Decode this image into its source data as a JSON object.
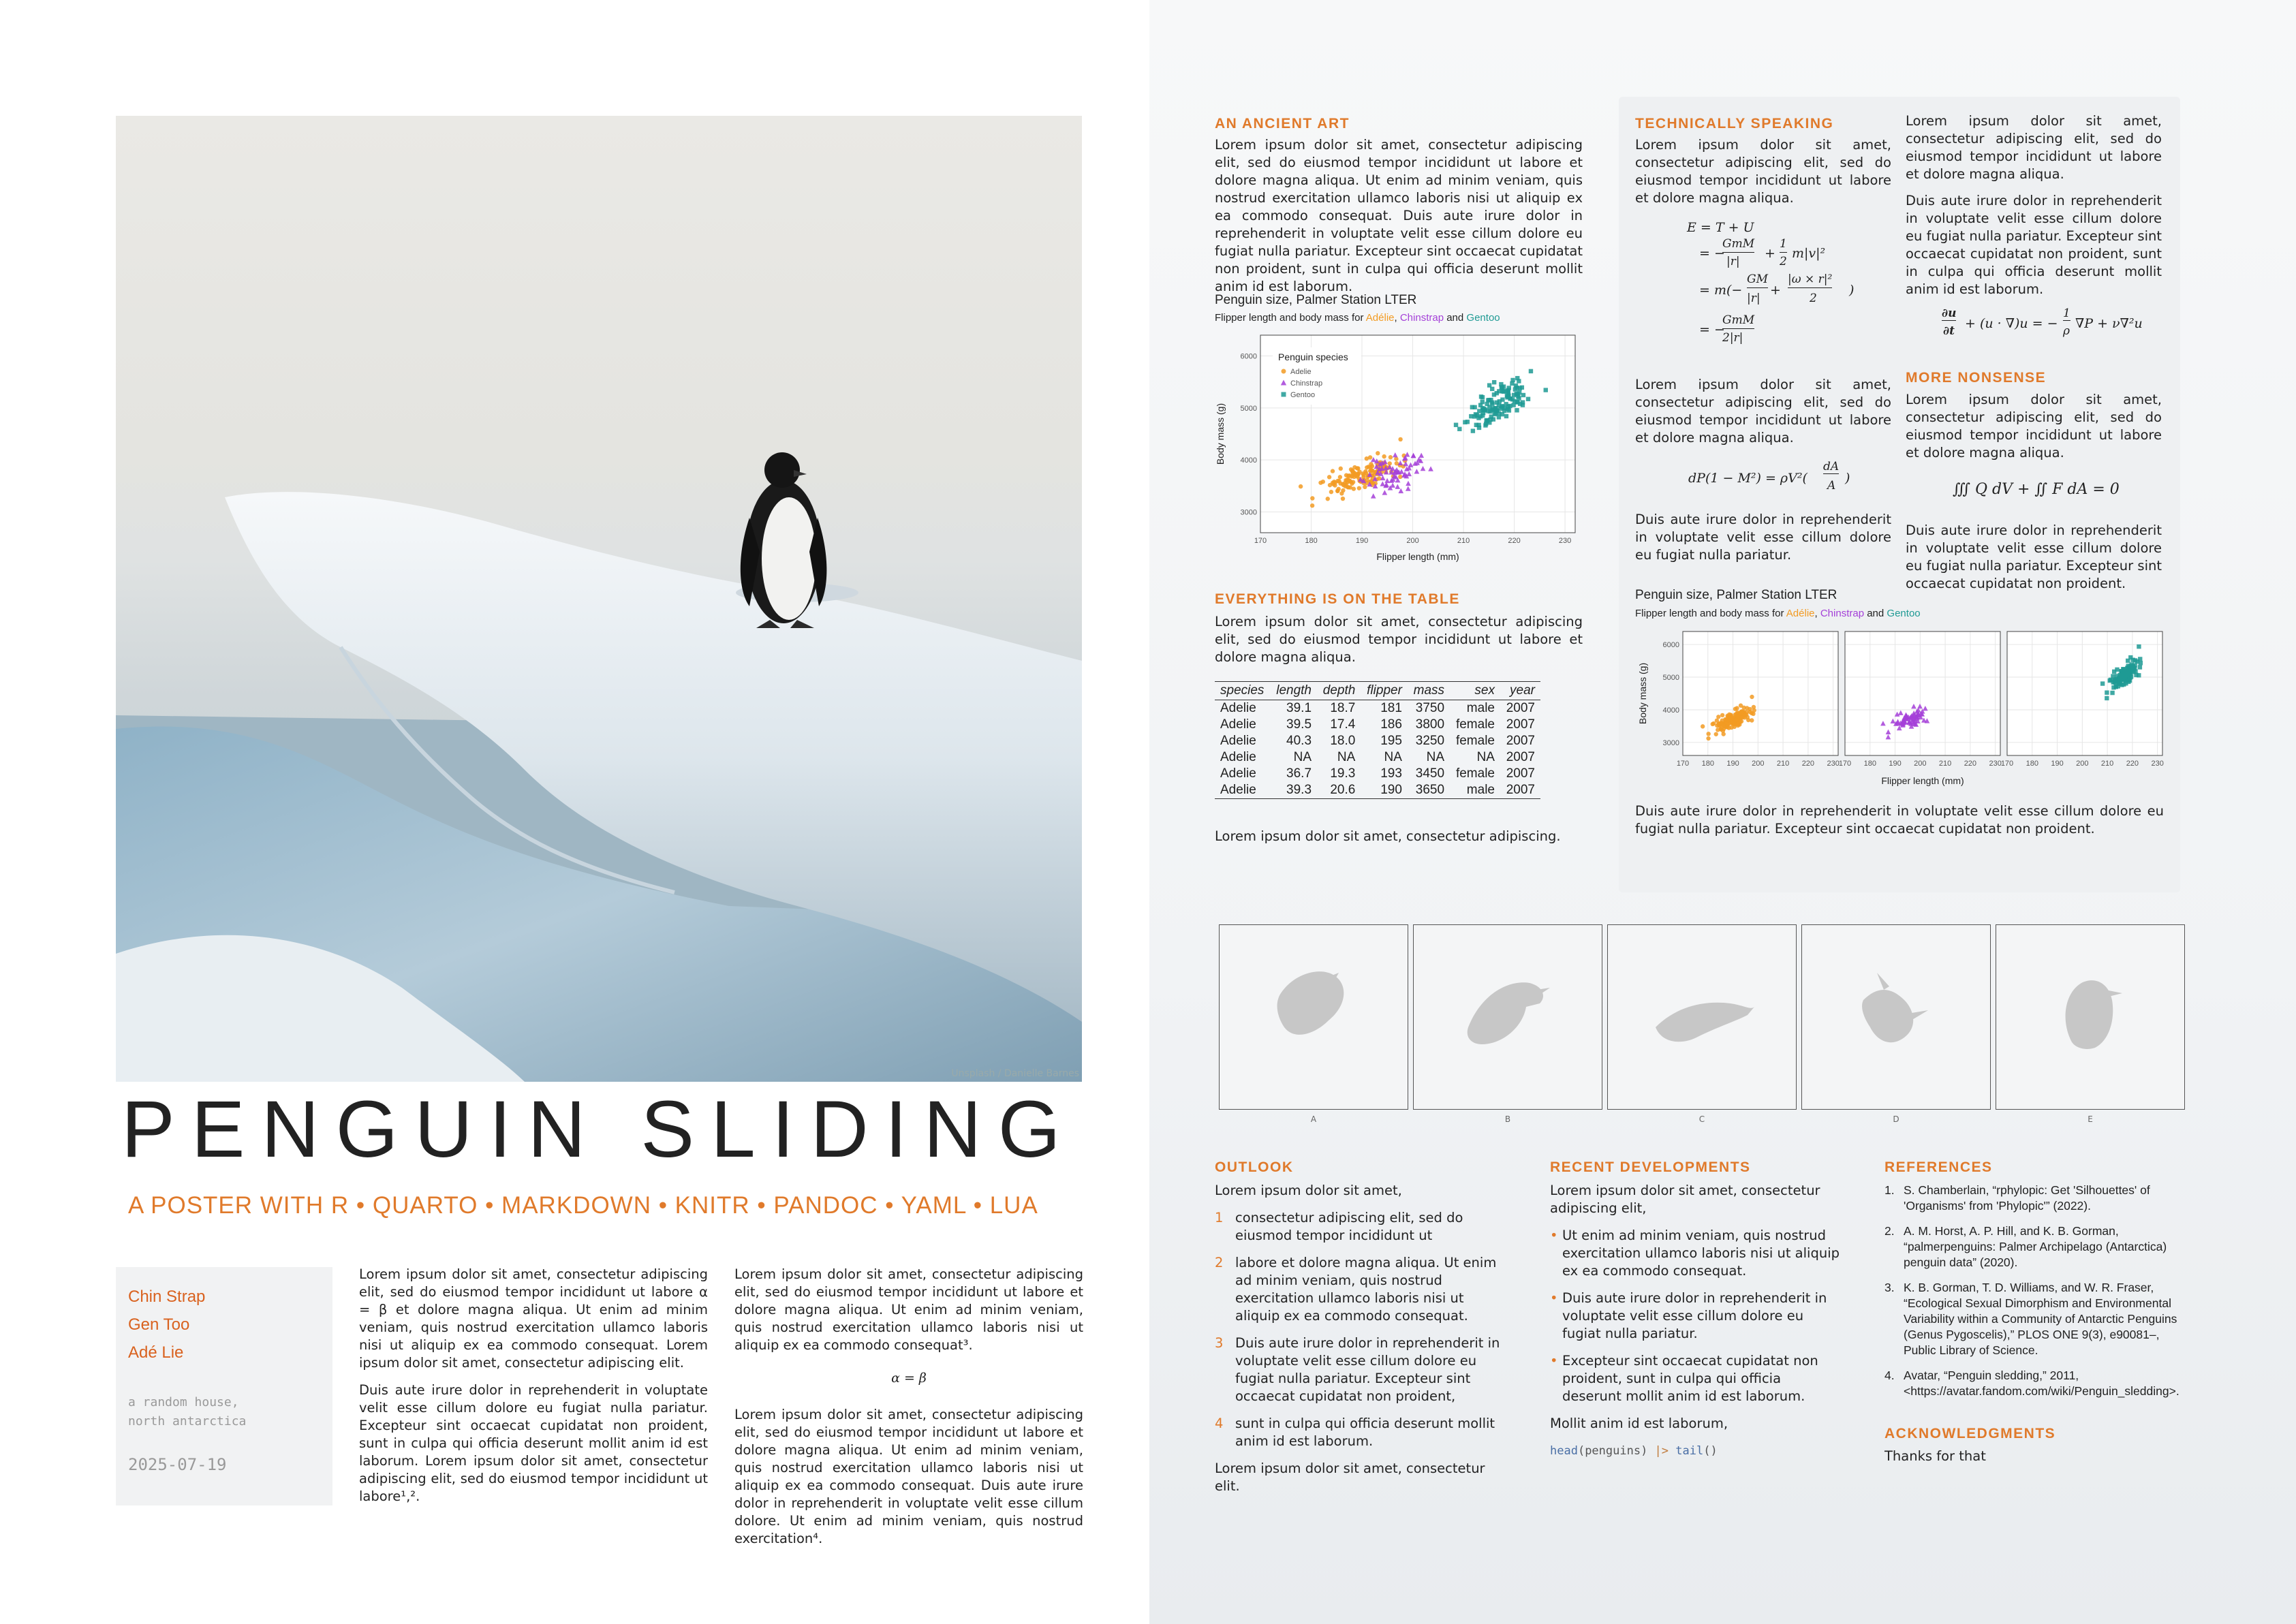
{
  "photo": {
    "credit": "Unsplash / Danielle Barnes"
  },
  "title": "PENGUIN SLIDING",
  "subtitle": "A POSTER WITH R • QUARTO • MARKDOWN • KNITR • PANDOC • YAML • LUA",
  "authors": [
    "Chin Strap",
    "Gen Too",
    "Adé Lie"
  ],
  "affiliation": [
    "a random house,",
    "north antarctica"
  ],
  "date": "2025-07-19",
  "body": {
    "c1p1": "Lorem ipsum dolor sit amet, consectetur adipiscing elit, sed do eiusmod tempor incididunt ut labore α = β et dolore magna aliqua. Ut enim ad minim veniam, quis nostrud exercitation ullamco laboris nisi ut aliquip ex ea commodo consequat. Lorem ipsum dolor sit amet, consectetur adipiscing elit.",
    "c1p2": "Duis aute irure dolor in reprehenderit in voluptate velit esse cillum dolore eu fugiat nulla pariatur. Excepteur sint occaecat cupidatat non proident, sunt in culpa qui officia deserunt mollit anim id est laborum. Lorem ipsum dolor sit amet, consectetur adipiscing elit, sed do eiusmod tempor incididunt ut labore¹,².",
    "c2p1": "Lorem ipsum dolor sit amet, consectetur adipiscing elit, sed do eiusmod tempor incididunt ut labore et dolore magna aliqua. Ut enim ad minim veniam, quis nostrud exercitation ullamco laboris nisi ut aliquip ex ea commodo consequat³.",
    "c2eq": "α = β",
    "c2p2": "Lorem ipsum dolor sit amet, consectetur adipiscing elit, sed do eiusmod tempor incididunt ut labore et dolore magna aliqua. Ut enim ad minim veniam, quis nostrud exercitation ullamco laboris nisi ut aliquip ex ea commodo consequat. Duis aute irure dolor in reprehenderit in voluptate velit esse cillum dolore. Ut enim ad minim veniam, quis nostrud exercitation⁴."
  },
  "ancient": {
    "heading": "AN ANCIENT ART",
    "text": "Lorem ipsum dolor sit amet, consectetur adipiscing elit, sed do eiusmod tempor incididunt ut labore et dolore magna aliqua. Ut enim ad minim veniam, quis nostrud exercitation ullamco laboris nisi ut aliquip ex ea commodo consequat. Duis aute irure dolor in reprehenderit in voluptate velit esse cillum dolore eu fugiat nulla pariatur. Excepteur sint occaecat cupidatat non proident, sunt in culpa qui officia deserunt mollit anim id est laborum.",
    "chart_title": "Penguin size, Palmer Station LTER",
    "chart_sub_pre": "Flipper length and body mass for ",
    "chart_sub_and": " and "
  },
  "species": {
    "adelie": "Adélie",
    "chinstrap": "Chinstrap",
    "gentoo": "Gentoo",
    "comma": ", "
  },
  "table_section": {
    "heading": "EVERYTHING IS ON THE TABLE",
    "text": "Lorem ipsum dolor sit amet, consectetur adipiscing elit, sed do eiusmod tempor incididunt ut labore et dolore magna aliqua.",
    "columns": [
      "species",
      "length",
      "depth",
      "flipper",
      "mass",
      "sex",
      "year"
    ],
    "rows": [
      [
        "Adelie",
        "39.1",
        "18.7",
        "181",
        "3750",
        "male",
        "2007"
      ],
      [
        "Adelie",
        "39.5",
        "17.4",
        "186",
        "3800",
        "female",
        "2007"
      ],
      [
        "Adelie",
        "40.3",
        "18.0",
        "195",
        "3250",
        "female",
        "2007"
      ],
      [
        "Adelie",
        "NA",
        "NA",
        "NA",
        "NA",
        "NA",
        "2007"
      ],
      [
        "Adelie",
        "36.7",
        "19.3",
        "193",
        "3450",
        "female",
        "2007"
      ],
      [
        "Adelie",
        "39.3",
        "20.6",
        "190",
        "3650",
        "male",
        "2007"
      ]
    ],
    "after": "Lorem ipsum dolor sit amet, consectetur adipiscing."
  },
  "tech": {
    "heading": "TECHNICALLY SPEAKING",
    "p1": "Lorem ipsum dolor sit amet, consectetur adipiscing elit, sed do eiusmod tempor incididunt ut labore et dolore magna aliqua.",
    "p2": "Lorem ipsum dolor sit amet, consectetur adipiscing elit, sed do eiusmod tempor incididunt ut labore et dolore magna aliqua.",
    "p3": "Duis aute irure dolor in reprehenderit in voluptate velit esse cillum dolore eu fugiat nulla pariatur.",
    "eq1a": "E = T + U",
    "eq1b": "= −",
    "eq1c": "GmM",
    "eq1d": "|r|",
    "eq1e": "+ ",
    "eq1f": "1",
    "eq1g": "2",
    "eq1h": "m|v|²",
    "eq1i": "= m(−",
    "eq1j": "GM",
    "eq1k": "|r|",
    "eq1l": " + ",
    "eq1m": "|ω × r|²",
    "eq1n": "2",
    "eq1o": ")",
    "eq1p": "= −",
    "eq1q": "GmM",
    "eq1r": "2|r|",
    "eq2a": "dP(1 − M²) = ρV²(",
    "eq2b": "dA",
    "eq2c": "A",
    "eq2d": ")",
    "right_p1": "Lorem ipsum dolor sit amet, consectetur adipiscing elit, sed do eiusmod tempor incididunt ut labore et dolore magna aliqua.",
    "right_p2": "Duis aute irure dolor in reprehenderit in voluptate velit esse cillum dolore eu fugiat nulla pariatur. Excepteur sint occaecat cupidatat non proident, sunt in culpa qui officia deserunt mollit anim id est laborum.",
    "eq3a": "∂u",
    "eq3b": "∂t",
    "eq3c": "+ (u · ∇)u = −",
    "eq3d": "1",
    "eq3e": "ρ",
    "eq3f": "∇P + ν∇²u",
    "nonsense_heading": "MORE NONSENSE",
    "nonsense_p1": "Lorem ipsum dolor sit amet, consectetur adipiscing elit, sed do eiusmod tempor incididunt ut labore et dolore magna aliqua.",
    "eq4": "∭ Q dV + ∬ F dA = 0",
    "nonsense_p2": "Duis aute irure dolor in reprehenderit in voluptate velit esse cillum dolore eu fugiat nulla pariatur. Excepteur sint occaecat cupidatat non proident.",
    "chart_title": "Penguin size, Palmer Station LTER",
    "chart_sub_pre": "Flipper length and body mass for ",
    "chart_sub_and": " and ",
    "after": "Duis aute irure dolor in reprehenderit in voluptate velit esse cillum dolore eu fugiat nulla pariatur. Excepteur sint occaecat cupidatat non proident."
  },
  "silhouettes": [
    "A",
    "B",
    "C",
    "D",
    "E"
  ],
  "outlook": {
    "heading": "OUTLOOK",
    "intro": "Lorem ipsum dolor sit amet,",
    "items": [
      "consectetur adipiscing elit, sed do eiusmod tempor incididunt ut",
      "labore et dolore magna aliqua. Ut enim ad minim veniam, quis nostrud exercitation ullamco laboris nisi ut aliquip ex ea commodo consequat.",
      "Duis aute irure dolor in reprehenderit in voluptate velit esse cillum dolore eu fugiat nulla pariatur. Excepteur sint occaecat cupidatat non proident,",
      "sunt in culpa qui officia deserunt mollit anim id est laborum."
    ],
    "nums": [
      "1",
      "2",
      "3",
      "4"
    ],
    "outro": "Lorem ipsum dolor sit amet, consectetur elit."
  },
  "recent": {
    "heading": "RECENT DEVELOPMENTS",
    "intro": "Lorem ipsum dolor sit amet, consectetur adipiscing elit,",
    "items": [
      "Ut enim ad minim veniam, quis nostrud exercitation ullamco laboris nisi ut aliquip ex ea commodo consequat.",
      "Duis aute irure dolor in reprehenderit in voluptate velit esse cillum dolore eu fugiat nulla pariatur.",
      "Excepteur sint occaecat cupidatat non proident, sunt in culpa qui officia deserunt mollit anim id est laborum."
    ],
    "outro": "Mollit anim id est laborum,",
    "code_fn": "head",
    "code_arg": "(penguins) ",
    "code_pipe": "|>",
    "code_fn2": " tail",
    "code_end": "()"
  },
  "references": {
    "heading": "REFERENCES",
    "nums": [
      "1.",
      "2.",
      "3.",
      "4."
    ],
    "items": [
      "S. Chamberlain, “rphylopic: Get 'Silhouettes' of 'Organisms' from 'Phylopic'” (2022).",
      "A. M. Horst, A. P. Hill, and K. B. Gorman, “palmerpenguins: Palmer Archipelago (Antarctica) penguin data” (2020).",
      "K. B. Gorman, T. D. Williams, and W. R. Fraser, “Ecological Sexual Dimorphism and Environmental Variability within a Community of Antarctic Penguins (Genus Pygoscelis),” PLOS ONE 9(3), e90081–, Public Library of Science.",
      "Avatar, “Penguin sledding,” 2011, <https://avatar.fandom.com/wiki/Penguin_sledding>."
    ]
  },
  "ack": {
    "heading": "ACKNOWLEDGMENTS",
    "text": "Thanks for that"
  },
  "colors": {
    "adelie": "#f29b23",
    "chinstrap": "#a440d8",
    "gentoo": "#1f9a94",
    "accent": "#e07a2b"
  },
  "chart_data": [
    {
      "type": "scatter",
      "title": "Penguin size, Palmer Station LTER",
      "subtitle": "Flipper length and body mass for Adélie, Chinstrap and Gentoo",
      "xlabel": "Flipper length (mm)",
      "ylabel": "Body mass (g)",
      "xlim": [
        170,
        232
      ],
      "ylim": [
        2600,
        6400
      ],
      "xticks": [
        170,
        180,
        190,
        200,
        210,
        220,
        230
      ],
      "yticks": [
        3000,
        4000,
        5000,
        6000
      ],
      "legend": {
        "title": "Penguin species",
        "position": "top-left",
        "entries": [
          "Adelie",
          "Chinstrap",
          "Gentoo"
        ]
      },
      "series": [
        {
          "name": "Adelie",
          "x_range": [
            172,
            210
          ],
          "y_range": [
            2850,
            4775
          ],
          "center": [
            190,
            3700
          ],
          "n": 150
        },
        {
          "name": "Chinstrap",
          "x_range": [
            178,
            212
          ],
          "y_range": [
            2700,
            4800
          ],
          "center": [
            196,
            3730
          ],
          "n": 68
        },
        {
          "name": "Gentoo",
          "x_range": [
            203,
            231
          ],
          "y_range": [
            3950,
            6300
          ],
          "center": [
            217,
            5076
          ],
          "n": 124
        }
      ]
    },
    {
      "type": "scatter",
      "facets": [
        "Adelie",
        "Chinstrap",
        "Gentoo"
      ],
      "xlabel": "Flipper length (mm)",
      "ylabel": "Body mass (g)",
      "xlim": [
        170,
        232
      ],
      "ylim": [
        2600,
        6400
      ],
      "xticks": [
        170,
        180,
        190,
        200,
        210,
        220,
        230
      ],
      "yticks": [
        3000,
        4000,
        5000,
        6000
      ]
    }
  ]
}
